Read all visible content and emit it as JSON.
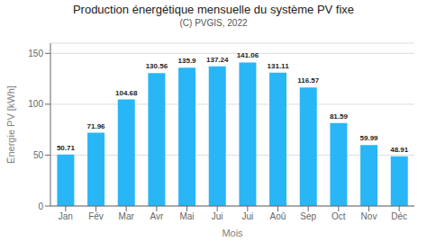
{
  "chart_data": {
    "type": "bar",
    "title": "Production énergétique mensuelle du système PV fixe",
    "subtitle": "(C) PVGIS, 2022",
    "xlabel": "Mois",
    "ylabel": "Énergie PV [kWh]",
    "categories": [
      "Jan",
      "Fév",
      "Mar",
      "Avr",
      "Mai",
      "Jui",
      "Jui",
      "Aoû",
      "Sep",
      "Oct",
      "Nov",
      "Déc"
    ],
    "values": [
      50.71,
      71.96,
      104.68,
      130.56,
      135.9,
      137.24,
      141.06,
      131.11,
      116.57,
      81.59,
      59.99,
      48.91
    ],
    "color": "#29b6f6",
    "ylim": [
      0,
      160
    ],
    "yticks": [
      0,
      50,
      100,
      150
    ],
    "grid": true,
    "data_labels": true
  }
}
